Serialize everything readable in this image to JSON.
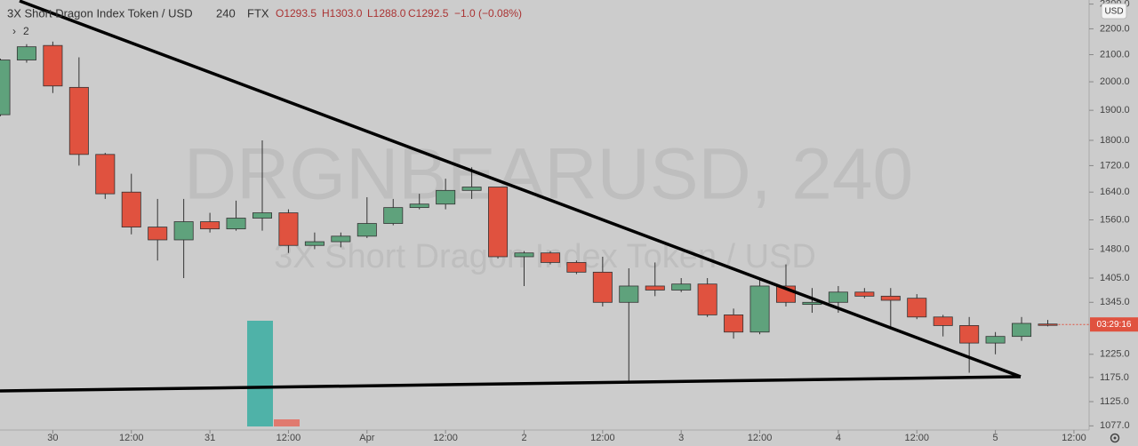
{
  "header": {
    "symbol": "3X Short Dragon Index Token / USD",
    "interval": "240",
    "exchange": "FTX",
    "ohlc": [
      "O1293.5",
      "H1303.0",
      "L1288.0",
      "C1292.5"
    ],
    "change": "−1.0 (−0.08%)",
    "indicators": "2",
    "currency": "USD",
    "countdown": "03:29:16",
    "watermark": "DRGNBEARUSD, 240",
    "watermark_subtitle": "3X Short Dragon Index Token / USD"
  },
  "chart_data": {
    "type": "candlestick",
    "log_scale": true,
    "grid": false,
    "up_color": "#5fa27c",
    "down_color": "#e0523f",
    "categories": [
      null,
      null,
      "30",
      null,
      null,
      "12:00",
      null,
      null,
      "31",
      null,
      null,
      "12:00",
      null,
      null,
      "Apr",
      null,
      null,
      "12:00",
      null,
      null,
      "2",
      null,
      null,
      "12:00",
      null,
      null,
      "3",
      null,
      null,
      "12:00",
      null,
      null,
      "4",
      null,
      null,
      "12:00",
      null,
      null,
      "5",
      null,
      null,
      "12:00"
    ],
    "open": [
      1885,
      2080,
      2135,
      1980,
      1755,
      1640,
      1540,
      1505,
      1555,
      1535,
      1565,
      1580,
      1490,
      1500,
      1515,
      1550,
      1595,
      1605,
      1645,
      1655,
      1460,
      1470,
      1445,
      1420,
      1345,
      1385,
      1375,
      1390,
      1315,
      1275,
      1385,
      1340,
      1345,
      1370,
      1360,
      1355,
      1310,
      1290,
      1250,
      1265,
      1293.5,
      null
    ],
    "high": [
      2085,
      2140,
      2150,
      2090,
      1760,
      1695,
      1620,
      1620,
      1580,
      1615,
      1800,
      1590,
      1525,
      1525,
      1625,
      1620,
      1635,
      1680,
      1715,
      1655,
      1475,
      1475,
      1450,
      1460,
      1430,
      1445,
      1405,
      1405,
      1330,
      1400,
      1440,
      1380,
      1385,
      1380,
      1380,
      1365,
      1315,
      1310,
      1275,
      1310,
      1303.0,
      null
    ],
    "low": [
      1880,
      2070,
      1960,
      1720,
      1620,
      1520,
      1450,
      1405,
      1525,
      1530,
      1530,
      1470,
      1480,
      1485,
      1510,
      1545,
      1590,
      1590,
      1620,
      1455,
      1385,
      1440,
      1415,
      1335,
      1165,
      1360,
      1370,
      1310,
      1260,
      1270,
      1335,
      1320,
      1320,
      1355,
      1285,
      1305,
      1265,
      1185,
      1225,
      1255,
      1288.0,
      null
    ],
    "close": [
      2080,
      2130,
      1985,
      1755,
      1635,
      1540,
      1505,
      1555,
      1535,
      1565,
      1580,
      1490,
      1500,
      1515,
      1550,
      1595,
      1605,
      1645,
      1655,
      1460,
      1470,
      1445,
      1420,
      1345,
      1385,
      1375,
      1390,
      1315,
      1275,
      1385,
      1345,
      1345,
      1370,
      1360,
      1350,
      1310,
      1290,
      1250,
      1265,
      1295,
      1292.5,
      null
    ],
    "ylim": [
      1069,
      2317
    ],
    "yticks": [
      {
        "value": 1077,
        "label": "1077.0"
      },
      {
        "value": 1125,
        "label": "1125.0"
      },
      {
        "value": 1175,
        "label": "1175.0"
      },
      {
        "value": 1225,
        "label": "1225.0"
      },
      {
        "value": 1345,
        "label": "1345.0"
      },
      {
        "value": 1405,
        "label": "1405.0"
      },
      {
        "value": 1480,
        "label": "1480.0"
      },
      {
        "value": 1560,
        "label": "1560.0"
      },
      {
        "value": 1640,
        "label": "1640.0"
      },
      {
        "value": 1720,
        "label": "1720.0"
      },
      {
        "value": 1800,
        "label": "1800.0"
      },
      {
        "value": 1900,
        "label": "1900.0"
      },
      {
        "value": 2000,
        "label": "2000.0"
      },
      {
        "value": 2100,
        "label": "2100.0"
      },
      {
        "value": 2200,
        "label": "2200.0"
      },
      {
        "value": 2300,
        "label": "2300.0"
      }
    ]
  }
}
